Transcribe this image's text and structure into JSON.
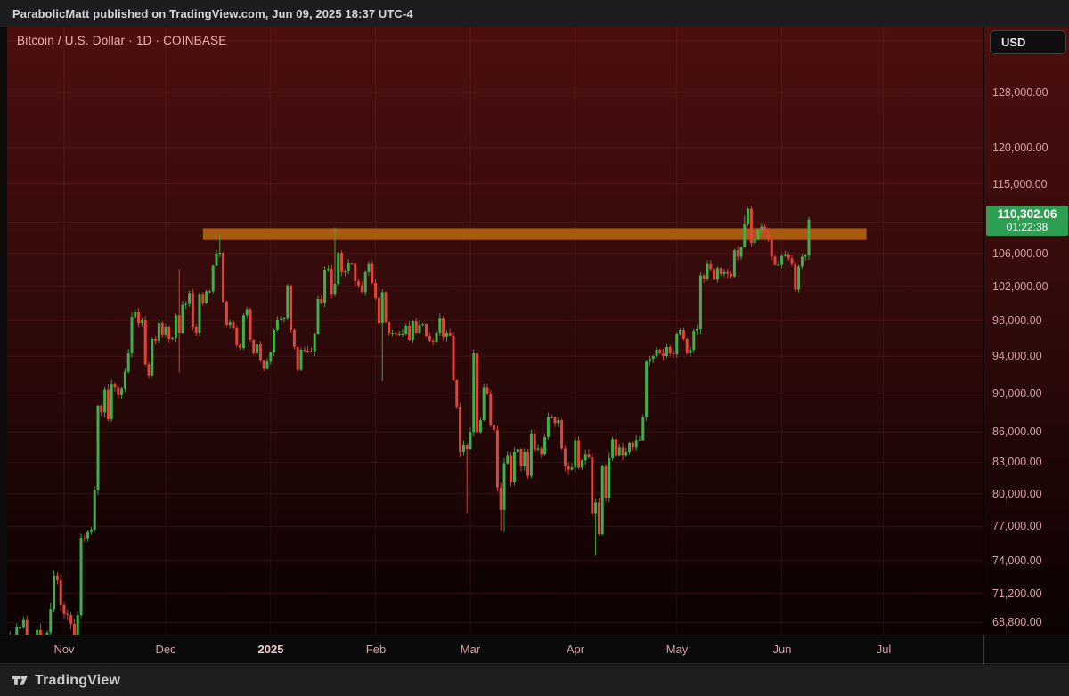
{
  "header": {
    "text": "ParabolicMatt published on TradingView.com, Jun 09, 2025 18:37 UTC-4"
  },
  "chart": {
    "title": "Bitcoin / U.S. Dollar · 1D · COINBASE",
    "currency_button": "USD",
    "price_label": {
      "price": "110,302.06",
      "countdown": "01:22:38",
      "bg_color": "#2e9e53"
    }
  },
  "footer": {
    "brand": "TradingView"
  },
  "chart_data": {
    "type": "candlestick",
    "title": "Bitcoin / U.S. Dollar",
    "interval": "1D",
    "exchange": "COINBASE",
    "quote_currency": "USD",
    "scale": "logarithmic",
    "price_unit": "thousands of USD",
    "start_date": "2024-10-16",
    "end_date": "2025-06-09",
    "last_price": 110302.06,
    "countdown": "01:22:38",
    "up_color": "#3fae4c",
    "down_color": "#e2443c",
    "grid": true,
    "legend_position": "none",
    "y_axis": {
      "tick_labels": [
        "128,000.00",
        "120,000.00",
        "115,000.00",
        "106,000.00",
        "102,000.00",
        "98,000.00",
        "94,000.00",
        "90,000.00",
        "86,000.00",
        "83,000.00",
        "80,000.00",
        "77,000.00",
        "74,000.00",
        "71,200.00",
        "68,800.00"
      ],
      "tick_values": [
        128,
        120,
        115,
        106,
        102,
        98,
        94,
        90,
        86,
        83,
        80,
        77,
        74,
        71.2,
        68.8
      ],
      "gridline_values": [
        136,
        128,
        120,
        115,
        110,
        106,
        102,
        98,
        94,
        90,
        86,
        83,
        80,
        77,
        74,
        71.2,
        68.8
      ],
      "visible_range": [
        67.9,
        137
      ]
    },
    "x_axis": {
      "labels": [
        "Nov",
        "Dec",
        "2025",
        "Feb",
        "Mar",
        "Apr",
        "May",
        "Jun",
        "Jul"
      ],
      "month_start_indices": [
        16,
        46,
        77,
        108,
        136,
        167,
        197,
        228,
        258
      ]
    },
    "highlight_zone": {
      "type": "resistance-box",
      "price_top": 109.2,
      "price_bottom": 107.7,
      "start_index": 57,
      "end_index": 253,
      "color": "#b05f10"
    },
    "first_open": 67.0,
    "closes": [
      67.6,
      67.4,
      68.4,
      68.4,
      69.0,
      67.0,
      67.4,
      66.4,
      68.2,
      66.6,
      67.0,
      68.0,
      69.9,
      72.7,
      72.3,
      70.2,
      69.5,
      69.4,
      68.7,
      67.8,
      69.4,
      76.0,
      75.9,
      76.5,
      76.7,
      80.4,
      88.7,
      88.0,
      90.4,
      87.3,
      91.0,
      90.6,
      89.8,
      90.5,
      92.3,
      94.3,
      98.4,
      99.0,
      97.7,
      98.0,
      93.1,
      91.9,
      95.9,
      95.7,
      97.7,
      96.4,
      97.3,
      95.9,
      96.0,
      98.6,
      96.6,
      99.8,
      99.9,
      101.2,
      97.3,
      96.6,
      101.1,
      100.0,
      101.4,
      101.4,
      104.5,
      106.0,
      106.1,
      100.2,
      97.5,
      97.8,
      97.2,
      95.2,
      94.9,
      98.6,
      99.3,
      95.8,
      94.3,
      95.3,
      93.5,
      92.6,
      93.4,
      94.4,
      96.9,
      98.1,
      98.2,
      98.3,
      102.1,
      96.9,
      95.0,
      92.5,
      94.7,
      94.6,
      94.5,
      94.5,
      96.5,
      100.5,
      100.0,
      104.0,
      104.1,
      101.1,
      102.3,
      106.1,
      103.7,
      103.9,
      104.8,
      104.7,
      102.6,
      102.1,
      101.3,
      103.7,
      104.7,
      102.4,
      100.6,
      97.7,
      101.3,
      97.8,
      96.6,
      96.6,
      96.5,
      96.5,
      96.5,
      97.4,
      95.8,
      97.9,
      96.6,
      97.5,
      97.6,
      96.2,
      95.7,
      95.6,
      96.6,
      98.3,
      96.1,
      96.6,
      96.3,
      91.4,
      88.6,
      84.0,
      84.7,
      84.3,
      86.0,
      94.3,
      86.0,
      87.2,
      90.6,
      89.9,
      86.7,
      86.2,
      80.6,
      78.5,
      82.9,
      83.7,
      81.1,
      84.0,
      84.3,
      82.6,
      84.0,
      81.7,
      85.8,
      84.2,
      84.4,
      83.8,
      85.5,
      87.5,
      87.5,
      86.9,
      87.2,
      84.4,
      82.6,
      82.3,
      82.5,
      85.2,
      82.5,
      83.2,
      83.8,
      83.5,
      78.2,
      79.2,
      76.3,
      82.6,
      79.6,
      83.4,
      85.3,
      83.7,
      84.5,
      83.7,
      84.0,
      84.9,
      84.5,
      85.2,
      85.2,
      87.5,
      93.4,
      93.7,
      94.0,
      94.7,
      94.3,
      94.0,
      95.0,
      94.3,
      94.2,
      96.5,
      96.9,
      95.9,
      94.3,
      94.7,
      96.8,
      97.0,
      103.3,
      102.9,
      104.7,
      104.1,
      102.8,
      104.2,
      103.5,
      103.7,
      103.5,
      103.2,
      106.4,
      105.6,
      106.8,
      109.7,
      111.7,
      107.3,
      107.8,
      109.0,
      109.4,
      108.9,
      107.8,
      105.6,
      104.6,
      104.6,
      105.7,
      105.9,
      105.4,
      104.7,
      101.6,
      104.4,
      105.6,
      105.8,
      110.3
    ],
    "wick_overrides": {
      "50": {
        "high": 104.1,
        "low": 92.2
      },
      "62": {
        "high": 108.3
      },
      "96": {
        "high": 109.3
      },
      "110": {
        "low": 91.3
      },
      "135": {
        "low": 78.2
      },
      "145": {
        "low": 76.6
      },
      "146": {
        "low": 76.5
      },
      "173": {
        "low": 74.4
      },
      "217": {
        "high": 110.8
      },
      "218": {
        "high": 111.9
      },
      "236": {
        "high": 110.6,
        "low": 105.2
      }
    }
  }
}
